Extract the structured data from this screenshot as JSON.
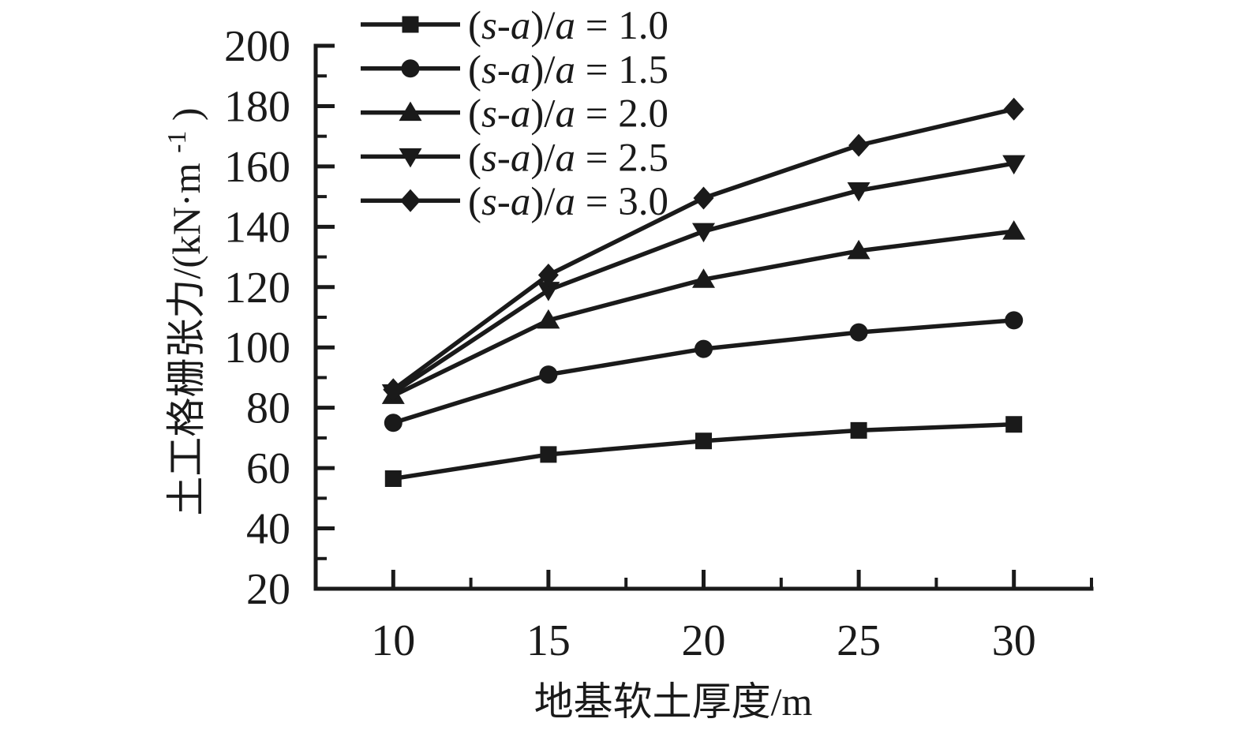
{
  "chart_data": {
    "type": "line",
    "title": "",
    "xlabel": "地基软土厚度/m",
    "ylabel": "土工格栅张力/(kN·m⁻¹)",
    "ylabel_parts": {
      "pre": "土工格栅张力/(kN·m",
      "sup": "-1",
      "post": ")"
    },
    "x": [
      10,
      15,
      20,
      25,
      30
    ],
    "series": [
      {
        "name": "(s-a)/a = 1.0",
        "marker": "square",
        "values": [
          56.5,
          64.5,
          69,
          72.5,
          74.5
        ]
      },
      {
        "name": "(s-a)/a = 1.5",
        "marker": "circle",
        "values": [
          75,
          91,
          99.5,
          105,
          109
        ]
      },
      {
        "name": "(s-a)/a = 2.0",
        "marker": "triangle-up",
        "values": [
          84,
          109,
          122.5,
          132,
          138.5
        ]
      },
      {
        "name": "(s-a)/a = 2.5",
        "marker": "triangle-down",
        "values": [
          85,
          119,
          138.5,
          152,
          161
        ]
      },
      {
        "name": "(s-a)/a = 3.0",
        "marker": "diamond",
        "values": [
          86,
          124,
          149.5,
          167,
          179
        ]
      }
    ],
    "xlim": [
      7.5,
      32.5
    ],
    "ylim": [
      20,
      200
    ],
    "x_major_ticks": [
      10,
      15,
      20,
      25,
      30
    ],
    "x_minor_ticks": [
      12.5,
      17.5,
      22.5,
      27.5,
      32.5
    ],
    "y_major_ticks": [
      20,
      40,
      60,
      80,
      100,
      120,
      140,
      160,
      180,
      200
    ],
    "y_minor_ticks": [
      30,
      50,
      70,
      90,
      110,
      130,
      150,
      170,
      190
    ],
    "grid": false,
    "legend_position": "top-left-inside",
    "colors": {
      "line": "#1a1a1a",
      "text": "#1a1a1a",
      "background": "#ffffff"
    }
  }
}
